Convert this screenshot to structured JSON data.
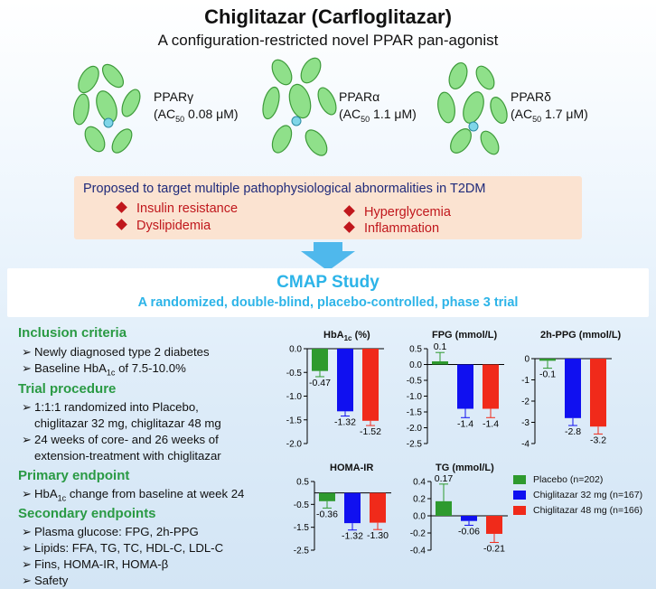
{
  "header": {
    "title": "Chiglitazar (Carfloglitazar)",
    "subtitle": "A configuration-restricted novel PPAR pan-agonist"
  },
  "proteins": [
    {
      "name": "PPARγ",
      "ac50_label": "(AC",
      "ac50_sub": "50",
      "ac50_value": " 0.08 μM)"
    },
    {
      "name": "PPARα",
      "ac50_label": "(AC",
      "ac50_sub": "50",
      "ac50_value": " 1.1 μM)"
    },
    {
      "name": "PPARδ",
      "ac50_label": "(AC",
      "ac50_sub": "50",
      "ac50_value": " 1.7 μM)"
    }
  ],
  "targets": {
    "title": "Proposed to target multiple pathophysiological abnormalities in T2DM",
    "items": [
      "Insulin resistance",
      "Hyperglycemia",
      "Dyslipidemia",
      "Inflammation"
    ],
    "bullet_color": "#c0171c"
  },
  "study": {
    "title": "CMAP Study",
    "subtitle": "A randomized, double-blind, placebo-controlled, phase 3 trial"
  },
  "sections": [
    {
      "heading": "Inclusion criteria",
      "bullets": [
        [
          "Newly diagnosed type 2 diabetes"
        ],
        [
          "Baseline HbA",
          "1c",
          " of 7.5-10.0%"
        ]
      ]
    },
    {
      "heading": "Trial procedure",
      "bullets": [
        [
          "1:1:1 randomized into Placebo,"
        ],
        [
          "chiglitazar 32 mg, chiglitazar 48 mg"
        ],
        [
          "24 weeks of core- and 26 weeks of"
        ],
        [
          "extension-treatment with chiglitazar"
        ]
      ]
    },
    {
      "heading": "Primary endpoint",
      "bullets": [
        [
          "HbA",
          "1c",
          " change from baseline at week 24"
        ]
      ]
    },
    {
      "heading": "Secondary endpoints",
      "bullets": [
        [
          "Plasma glucose: FPG, 2h-PPG"
        ],
        [
          "Lipids: FFA, TG, TC, HDL-C, LDL-C"
        ],
        [
          "Fins, HOMA-IR, HOMA-β"
        ],
        [
          "Safety"
        ]
      ]
    }
  ],
  "colors": {
    "placebo": "#2e9a2e",
    "c32": "#1010f0",
    "c48": "#f02a1a",
    "heading": "#2a9a44",
    "study": "#2db4e8"
  },
  "legend": [
    {
      "label": "Placebo  (n=202)",
      "color": "#2e9a2e"
    },
    {
      "label": "Chiglitazar 32 mg (n=167)",
      "color": "#1010f0"
    },
    {
      "label": "Chiglitazar 48 mg (n=166)",
      "color": "#f02a1a"
    }
  ],
  "chart_data": [
    {
      "type": "bar",
      "title": "HbA",
      "title_sub": "1c",
      "title_suffix": " (%)",
      "categories": [
        "Placebo",
        "Chiglitazar 32 mg",
        "Chiglitazar 48 mg"
      ],
      "values": [
        -0.47,
        -1.32,
        -1.52
      ],
      "value_labels": [
        "-0.47",
        "-1.32",
        "-1.52"
      ],
      "errors": [
        0.12,
        0.1,
        0.1
      ],
      "ylim": [
        -2.0,
        0.0
      ],
      "ticks": [
        "0.0",
        "-0.5",
        "-1.0",
        "-1.5",
        "-2.0"
      ],
      "tick_values": [
        0,
        -0.5,
        -1.0,
        -1.5,
        -2.0
      ]
    },
    {
      "type": "bar",
      "title": "FPG (mmol/L)",
      "categories": [
        "Placebo",
        "Chiglitazar 32 mg",
        "Chiglitazar 48 mg"
      ],
      "values": [
        0.1,
        -1.4,
        -1.4
      ],
      "value_labels": [
        "0.1",
        "-1.4",
        "-1.4"
      ],
      "errors": [
        0.28,
        0.28,
        0.28
      ],
      "ylim": [
        -2.5,
        0.5
      ],
      "ticks": [
        "0.5",
        "0.0",
        "-0.5",
        "-1.0",
        "-1.5",
        "-2.0",
        "-2.5"
      ],
      "tick_values": [
        0.5,
        0,
        -0.5,
        -1.0,
        -1.5,
        -2.0,
        -2.5
      ]
    },
    {
      "type": "bar",
      "title": "2h-PPG (mmol/L)",
      "categories": [
        "Placebo",
        "Chiglitazar 32 mg",
        "Chiglitazar 48 mg"
      ],
      "values": [
        -0.1,
        -2.8,
        -3.2
      ],
      "value_labels": [
        "-0.1",
        "-2.8",
        "-3.2"
      ],
      "errors": [
        0.35,
        0.35,
        0.35
      ],
      "ylim": [
        -4,
        0
      ],
      "ticks": [
        "0",
        "-1",
        "-2",
        "-3",
        "-4"
      ],
      "tick_values": [
        0,
        -1,
        -2,
        -3,
        -4
      ]
    },
    {
      "type": "bar",
      "title": "HOMA-IR",
      "categories": [
        "Placebo",
        "Chiglitazar 32 mg",
        "Chiglitazar 48 mg"
      ],
      "values": [
        -0.36,
        -1.32,
        -1.3
      ],
      "value_labels": [
        "-0.36",
        "-1.32",
        "-1.30"
      ],
      "errors": [
        0.3,
        0.3,
        0.3
      ],
      "ylim": [
        -2.5,
        0.5
      ],
      "ticks": [
        "0.5",
        "-0.5",
        "-1.5",
        "-2.5"
      ],
      "tick_values": [
        0.5,
        -0.5,
        -1.5,
        -2.5
      ]
    },
    {
      "type": "bar",
      "title": "TG (mmol/L)",
      "categories": [
        "Placebo",
        "Chiglitazar 32 mg",
        "Chiglitazar 48 mg"
      ],
      "values": [
        0.17,
        -0.06,
        -0.21
      ],
      "value_labels": [
        "0.17",
        "-0.06",
        "-0.21"
      ],
      "errors": [
        0.2,
        0.05,
        0.1
      ],
      "ylim": [
        -0.4,
        0.4
      ],
      "ticks": [
        "0.4",
        "0.2",
        "0.0",
        "-0.2",
        "-0.4"
      ],
      "tick_values": [
        0.4,
        0.2,
        0,
        -0.2,
        -0.4
      ]
    }
  ]
}
